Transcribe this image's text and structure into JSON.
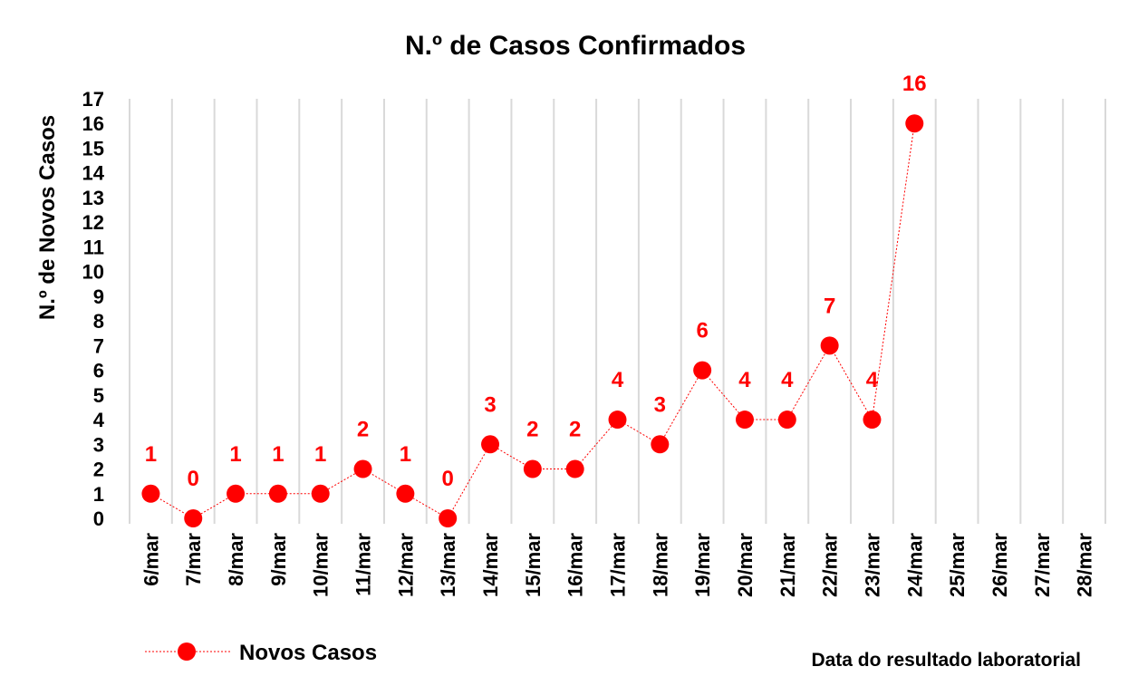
{
  "chart_data": {
    "type": "line",
    "title": "N.º de Casos Confirmados",
    "ylabel": "N.º de Novos Casos",
    "xlabel": "Data do resultado laboratorial",
    "ylim": [
      0,
      17
    ],
    "yticks": [
      0,
      1,
      2,
      3,
      4,
      5,
      6,
      7,
      8,
      9,
      10,
      11,
      12,
      13,
      14,
      15,
      16,
      17
    ],
    "grid": "vertical",
    "legend_position": "bottom-left",
    "categories": [
      "6/mar",
      "7/mar",
      "8/mar",
      "9/mar",
      "10/mar",
      "11/mar",
      "12/mar",
      "13/mar",
      "14/mar",
      "15/mar",
      "16/mar",
      "17/mar",
      "18/mar",
      "19/mar",
      "20/mar",
      "21/mar",
      "22/mar",
      "23/mar",
      "24/mar",
      "25/mar",
      "26/mar",
      "27/mar",
      "28/mar"
    ],
    "series": [
      {
        "name": "Novos Casos",
        "color": "#ff0000",
        "values": [
          1,
          0,
          1,
          1,
          1,
          2,
          1,
          0,
          3,
          2,
          2,
          4,
          3,
          6,
          4,
          4,
          7,
          4,
          16,
          null,
          null,
          null,
          null
        ]
      }
    ]
  }
}
